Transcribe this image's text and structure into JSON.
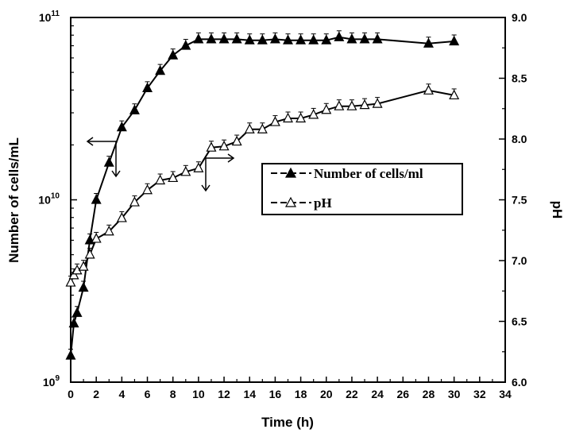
{
  "chart_data": {
    "type": "line",
    "xlabel": "Time (h)",
    "ylabel_left": "Number of cells/mL",
    "ylabel_right": "pH",
    "xlim": [
      0,
      34
    ],
    "ylim_left": [
      1000000000,
      100000000000
    ],
    "ylim_left_scale": "log",
    "ylim_right": [
      6.0,
      9.0
    ],
    "x_ticks": [
      "0",
      "2",
      "4",
      "6",
      "8",
      "10",
      "12",
      "14",
      "16",
      "18",
      "20",
      "22",
      "24",
      "26",
      "28",
      "30",
      "32",
      "34"
    ],
    "y_left_ticks": [
      {
        "base": "10",
        "exp": "9"
      },
      {
        "base": "10",
        "exp": "10"
      },
      {
        "base": "10",
        "exp": "11"
      }
    ],
    "y_right_ticks": [
      "6.0",
      "6.5",
      "7.0",
      "7.5",
      "8.0",
      "8.5",
      "9.0"
    ],
    "grid": false,
    "legend_position": "middle-right",
    "series": [
      {
        "name": "Number of cells/ml",
        "axis": "left",
        "marker": "filled-triangle",
        "x": [
          0,
          0.25,
          0.5,
          1,
          1.5,
          2,
          3,
          4,
          5,
          6,
          7,
          8,
          9,
          10,
          11,
          12,
          13,
          14,
          15,
          16,
          17,
          18,
          19,
          20,
          21,
          22,
          23,
          24,
          28,
          30
        ],
        "y": [
          1400000000,
          2100000000,
          2400000000,
          3300000000,
          6000000000,
          10000000000,
          16000000000,
          25000000000,
          31000000000,
          41000000000,
          51000000000,
          62000000000,
          70000000000,
          76000000000,
          76000000000,
          76000000000,
          76000000000,
          75000000000,
          75000000000,
          76000000000,
          75000000000,
          75000000000,
          75000000000,
          75000000000,
          78000000000,
          76000000000,
          76000000000,
          76000000000,
          72000000000,
          74000000000
        ]
      },
      {
        "name": "pH",
        "axis": "right",
        "marker": "open-triangle",
        "x": [
          0,
          0.25,
          0.5,
          1,
          1.5,
          2,
          3,
          4,
          5,
          6,
          7,
          8,
          9,
          10,
          11,
          12,
          13,
          14,
          15,
          16,
          17,
          18,
          19,
          20,
          21,
          22,
          23,
          24,
          28,
          30
        ],
        "y": [
          6.82,
          6.88,
          6.92,
          6.95,
          7.05,
          7.18,
          7.24,
          7.35,
          7.48,
          7.58,
          7.66,
          7.68,
          7.73,
          7.76,
          7.93,
          7.94,
          7.98,
          8.08,
          8.08,
          8.14,
          8.17,
          8.17,
          8.2,
          8.24,
          8.27,
          8.27,
          8.28,
          8.29,
          8.4,
          8.36
        ]
      }
    ]
  }
}
